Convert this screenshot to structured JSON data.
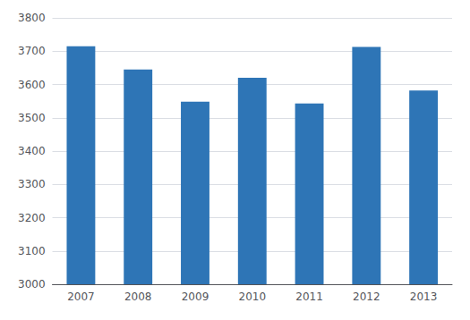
{
  "chart_data": {
    "type": "bar",
    "categories": [
      "2007",
      "2008",
      "2009",
      "2010",
      "2011",
      "2012",
      "2013"
    ],
    "values": [
      3715,
      3645,
      3548,
      3620,
      3543,
      3713,
      3582
    ],
    "color": "#2E75B6",
    "ylim": [
      3000,
      3800
    ],
    "yticks": [
      3000,
      3100,
      3200,
      3300,
      3400,
      3500,
      3600,
      3700,
      3800
    ],
    "grid": true
  }
}
